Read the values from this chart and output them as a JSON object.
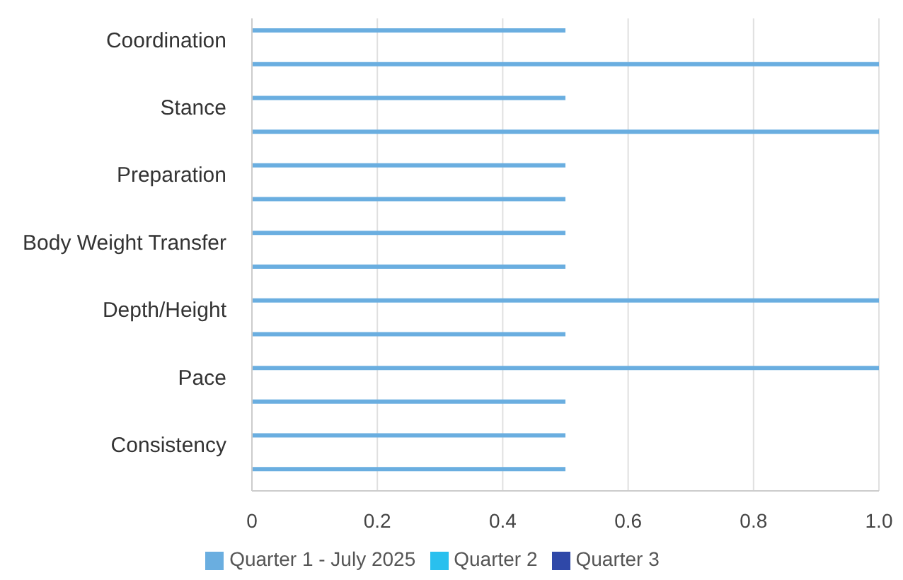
{
  "chart_data": {
    "type": "bar",
    "orientation": "horizontal",
    "categories": [
      "Coordination",
      null,
      "Stance",
      null,
      "Preparation",
      null,
      "Body Weight Transfer",
      null,
      "Depth/Height",
      null,
      "Pace",
      null,
      "Consistency",
      null
    ],
    "series": [
      {
        "name": "Quarter 1 - July 2025",
        "color": "#6aaee0",
        "values": [
          0.5,
          1,
          0.5,
          1,
          0.5,
          0.5,
          0.5,
          0.5,
          1,
          0.5,
          1,
          0.5,
          0.5,
          0.5
        ]
      },
      {
        "name": "Quarter 2",
        "color": "#29c0ee",
        "values": [
          null,
          null,
          null,
          null,
          null,
          null,
          null,
          null,
          null,
          null,
          null,
          null,
          null,
          null
        ]
      },
      {
        "name": "Quarter 3",
        "color": "#2f48a8",
        "values": [
          null,
          null,
          null,
          null,
          null,
          null,
          null,
          null,
          null,
          null,
          null,
          null,
          null,
          null
        ]
      }
    ],
    "xlim": [
      0,
      1
    ],
    "xticks": [
      0,
      0.2,
      0.4,
      0.6,
      0.8,
      {
        "value": 1,
        "label": "1.0"
      }
    ],
    "grid": "x",
    "legend": "bottom"
  }
}
